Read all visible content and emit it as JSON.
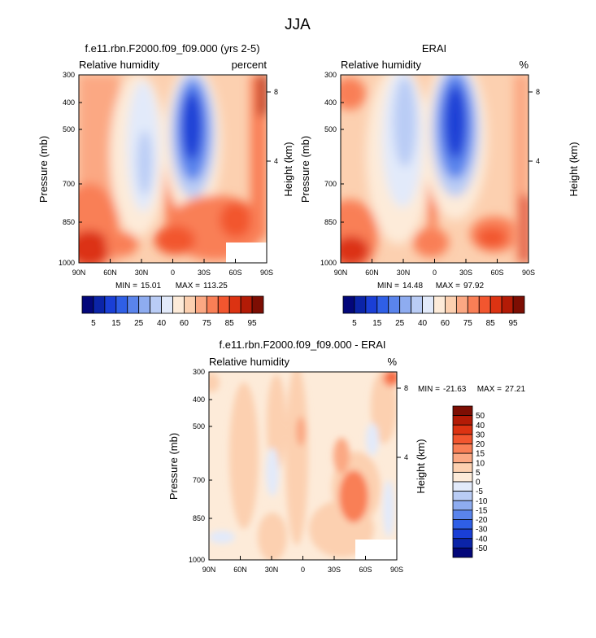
{
  "figure_title": "JJA",
  "chart_data": [
    {
      "type": "contour",
      "title": "f.e11.rbn.F2000.f09_f09.000 (yrs 2-5)",
      "left_label": "Relative humidity",
      "right_label": "percent",
      "ylabel": "Pressure (mb)",
      "ylabel_right": "Height (km)",
      "x_ticks": [
        "90N",
        "60N",
        "30N",
        "0",
        "30S",
        "60S",
        "90S"
      ],
      "y_ticks": [
        "300",
        "400",
        "500",
        "700",
        "850",
        "1000"
      ],
      "y_ticks_right": [
        "8",
        "4"
      ],
      "min_text": "MIN =",
      "min": "15.01",
      "max_text": "MAX =",
      "max": "113.25",
      "ylim": [
        1000,
        300
      ],
      "xlim": [
        90,
        -90
      ]
    },
    {
      "type": "contour",
      "title": "ERAI",
      "left_label": "Relative humidity",
      "right_label": "%",
      "ylabel": "Pressure (mb)",
      "ylabel_right": "Height (km)",
      "x_ticks": [
        "90N",
        "60N",
        "30N",
        "0",
        "30S",
        "60S",
        "90S"
      ],
      "y_ticks": [
        "300",
        "400",
        "500",
        "700",
        "850",
        "1000"
      ],
      "y_ticks_right": [
        "8",
        "4"
      ],
      "min_text": "MIN =",
      "min": "14.48",
      "max_text": "MAX =",
      "max": "97.92",
      "ylim": [
        1000,
        300
      ],
      "xlim": [
        90,
        -90
      ]
    },
    {
      "type": "contour",
      "title": "f.e11.rbn.F2000.f09_f09.000 - ERAI",
      "left_label": "Relative humidity",
      "right_label": "%",
      "ylabel": "Pressure (mb)",
      "ylabel_right": "Height (km)",
      "x_ticks": [
        "90N",
        "60N",
        "30N",
        "0",
        "30S",
        "60S",
        "90S"
      ],
      "y_ticks": [
        "300",
        "400",
        "500",
        "700",
        "850",
        "1000"
      ],
      "y_ticks_right": [
        "8",
        "4"
      ],
      "min_text": "MIN =",
      "min": "-21.63",
      "max_text": "MAX =",
      "max": "27.21",
      "ylim": [
        1000,
        300
      ],
      "xlim": [
        90,
        -90
      ]
    }
  ],
  "colorbar_top": {
    "labels": [
      "5",
      "15",
      "25",
      "40",
      "60",
      "75",
      "85",
      "95"
    ],
    "colors": [
      "#03077a",
      "#0b24a8",
      "#1a3fd6",
      "#2f5fe6",
      "#5a84ec",
      "#8eacf0",
      "#b9ccf5",
      "#e2eafa",
      "#fdebd9",
      "#fcd0b0",
      "#fba883",
      "#f97f56",
      "#f2562f",
      "#dc3312",
      "#b31b06",
      "#7d0e03"
    ]
  },
  "colorbar_diff": {
    "labels": [
      "50",
      "40",
      "30",
      "20",
      "15",
      "10",
      "5",
      "0",
      "-5",
      "-10",
      "-15",
      "-20",
      "-30",
      "-40",
      "-50"
    ],
    "colors": [
      "#7d0e03",
      "#b31b06",
      "#dc3312",
      "#f2562f",
      "#f97f56",
      "#fba883",
      "#fcd0b0",
      "#fdebd9",
      "#e2eafa",
      "#b9ccf5",
      "#8eacf0",
      "#5a84ec",
      "#2f5fe6",
      "#1a3fd6",
      "#0b24a8",
      "#03077a"
    ]
  }
}
